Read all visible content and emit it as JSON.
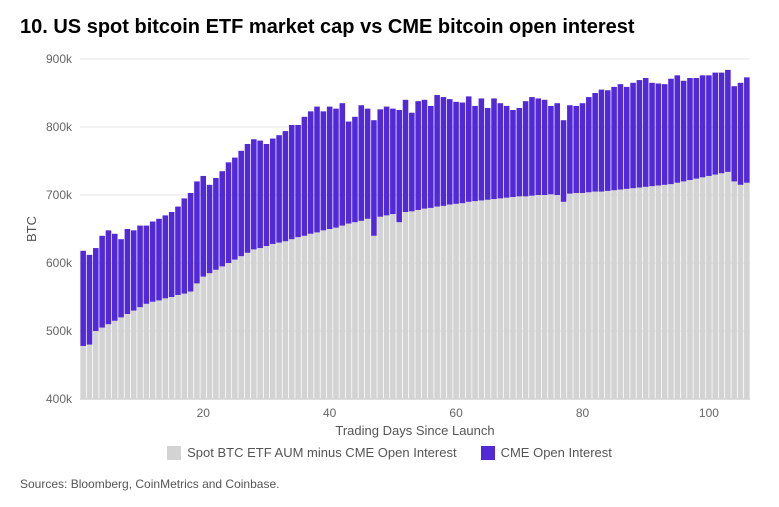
{
  "title": "10. US spot bitcoin ETF market cap vs CME bitcoin open interest",
  "source": "Sources: Bloomberg, CoinMetrics and Coinbase.",
  "chart": {
    "type": "stacked-bar",
    "ylabel": "BTC",
    "xlabel": "Trading Days Since Launch",
    "ylim": [
      400,
      900
    ],
    "ytick_step": 100,
    "ytick_suffix": "k",
    "xticks": [
      20,
      40,
      60,
      80,
      100
    ],
    "background_color": "#ffffff",
    "grid_color": "#e4e4e4",
    "bar_gap_ratio": 0.12,
    "axis_font_size": 13,
    "tick_font_size": 12,
    "title_font_size": 20,
    "series": [
      {
        "name": "Spot BTC ETF AUM minus CME Open Interest",
        "key": "spot",
        "color": "#d3d3d3"
      },
      {
        "name": "CME Open Interest",
        "key": "cme",
        "color": "#5229d6"
      }
    ],
    "data": [
      {
        "x": 1,
        "spot": 478,
        "cme": 140
      },
      {
        "x": 2,
        "spot": 480,
        "cme": 132
      },
      {
        "x": 3,
        "spot": 500,
        "cme": 122
      },
      {
        "x": 4,
        "spot": 505,
        "cme": 135
      },
      {
        "x": 5,
        "spot": 510,
        "cme": 138
      },
      {
        "x": 6,
        "spot": 515,
        "cme": 128
      },
      {
        "x": 7,
        "spot": 520,
        "cme": 115
      },
      {
        "x": 8,
        "spot": 525,
        "cme": 125
      },
      {
        "x": 9,
        "spot": 530,
        "cme": 118
      },
      {
        "x": 10,
        "spot": 535,
        "cme": 120
      },
      {
        "x": 11,
        "spot": 540,
        "cme": 115
      },
      {
        "x": 12,
        "spot": 543,
        "cme": 118
      },
      {
        "x": 13,
        "spot": 545,
        "cme": 120
      },
      {
        "x": 14,
        "spot": 548,
        "cme": 122
      },
      {
        "x": 15,
        "spot": 550,
        "cme": 125
      },
      {
        "x": 16,
        "spot": 553,
        "cme": 130
      },
      {
        "x": 17,
        "spot": 555,
        "cme": 140
      },
      {
        "x": 18,
        "spot": 558,
        "cme": 145
      },
      {
        "x": 19,
        "spot": 570,
        "cme": 150
      },
      {
        "x": 20,
        "spot": 580,
        "cme": 148
      },
      {
        "x": 21,
        "spot": 585,
        "cme": 130
      },
      {
        "x": 22,
        "spot": 590,
        "cme": 135
      },
      {
        "x": 23,
        "spot": 595,
        "cme": 140
      },
      {
        "x": 24,
        "spot": 600,
        "cme": 148
      },
      {
        "x": 25,
        "spot": 605,
        "cme": 150
      },
      {
        "x": 26,
        "spot": 610,
        "cme": 155
      },
      {
        "x": 27,
        "spot": 615,
        "cme": 160
      },
      {
        "x": 28,
        "spot": 620,
        "cme": 162
      },
      {
        "x": 29,
        "spot": 622,
        "cme": 158
      },
      {
        "x": 30,
        "spot": 625,
        "cme": 150
      },
      {
        "x": 31,
        "spot": 628,
        "cme": 155
      },
      {
        "x": 32,
        "spot": 630,
        "cme": 158
      },
      {
        "x": 33,
        "spot": 632,
        "cme": 162
      },
      {
        "x": 34,
        "spot": 635,
        "cme": 168
      },
      {
        "x": 35,
        "spot": 638,
        "cme": 165
      },
      {
        "x": 36,
        "spot": 640,
        "cme": 175
      },
      {
        "x": 37,
        "spot": 643,
        "cme": 180
      },
      {
        "x": 38,
        "spot": 645,
        "cme": 185
      },
      {
        "x": 39,
        "spot": 648,
        "cme": 175
      },
      {
        "x": 40,
        "spot": 650,
        "cme": 180
      },
      {
        "x": 41,
        "spot": 652,
        "cme": 175
      },
      {
        "x": 42,
        "spot": 655,
        "cme": 180
      },
      {
        "x": 43,
        "spot": 658,
        "cme": 150
      },
      {
        "x": 44,
        "spot": 660,
        "cme": 155
      },
      {
        "x": 45,
        "spot": 662,
        "cme": 170
      },
      {
        "x": 46,
        "spot": 665,
        "cme": 162
      },
      {
        "x": 47,
        "spot": 640,
        "cme": 170
      },
      {
        "x": 48,
        "spot": 668,
        "cme": 158
      },
      {
        "x": 49,
        "spot": 670,
        "cme": 160
      },
      {
        "x": 50,
        "spot": 672,
        "cme": 155
      },
      {
        "x": 51,
        "spot": 660,
        "cme": 165
      },
      {
        "x": 52,
        "spot": 675,
        "cme": 165
      },
      {
        "x": 53,
        "spot": 676,
        "cme": 145
      },
      {
        "x": 54,
        "spot": 678,
        "cme": 160
      },
      {
        "x": 55,
        "spot": 680,
        "cme": 160
      },
      {
        "x": 56,
        "spot": 681,
        "cme": 150
      },
      {
        "x": 57,
        "spot": 683,
        "cme": 164
      },
      {
        "x": 58,
        "spot": 684,
        "cme": 160
      },
      {
        "x": 59,
        "spot": 686,
        "cme": 155
      },
      {
        "x": 60,
        "spot": 687,
        "cme": 150
      },
      {
        "x": 61,
        "spot": 688,
        "cme": 148
      },
      {
        "x": 62,
        "spot": 690,
        "cme": 155
      },
      {
        "x": 63,
        "spot": 691,
        "cme": 140
      },
      {
        "x": 64,
        "spot": 692,
        "cme": 150
      },
      {
        "x": 65,
        "spot": 693,
        "cme": 135
      },
      {
        "x": 66,
        "spot": 694,
        "cme": 148
      },
      {
        "x": 67,
        "spot": 695,
        "cme": 140
      },
      {
        "x": 68,
        "spot": 696,
        "cme": 135
      },
      {
        "x": 69,
        "spot": 697,
        "cme": 128
      },
      {
        "x": 70,
        "spot": 698,
        "cme": 130
      },
      {
        "x": 71,
        "spot": 698,
        "cme": 140
      },
      {
        "x": 72,
        "spot": 699,
        "cme": 145
      },
      {
        "x": 73,
        "spot": 700,
        "cme": 142
      },
      {
        "x": 74,
        "spot": 700,
        "cme": 140
      },
      {
        "x": 75,
        "spot": 701,
        "cme": 130
      },
      {
        "x": 76,
        "spot": 700,
        "cme": 135
      },
      {
        "x": 77,
        "spot": 690,
        "cme": 120
      },
      {
        "x": 78,
        "spot": 702,
        "cme": 130
      },
      {
        "x": 79,
        "spot": 703,
        "cme": 128
      },
      {
        "x": 80,
        "spot": 703,
        "cme": 132
      },
      {
        "x": 81,
        "spot": 704,
        "cme": 140
      },
      {
        "x": 82,
        "spot": 705,
        "cme": 145
      },
      {
        "x": 83,
        "spot": 705,
        "cme": 150
      },
      {
        "x": 84,
        "spot": 706,
        "cme": 148
      },
      {
        "x": 85,
        "spot": 707,
        "cme": 152
      },
      {
        "x": 86,
        "spot": 708,
        "cme": 155
      },
      {
        "x": 87,
        "spot": 709,
        "cme": 150
      },
      {
        "x": 88,
        "spot": 710,
        "cme": 155
      },
      {
        "x": 89,
        "spot": 711,
        "cme": 158
      },
      {
        "x": 90,
        "spot": 712,
        "cme": 160
      },
      {
        "x": 91,
        "spot": 713,
        "cme": 152
      },
      {
        "x": 92,
        "spot": 714,
        "cme": 150
      },
      {
        "x": 93,
        "spot": 715,
        "cme": 148
      },
      {
        "x": 94,
        "spot": 716,
        "cme": 155
      },
      {
        "x": 95,
        "spot": 718,
        "cme": 158
      },
      {
        "x": 96,
        "spot": 720,
        "cme": 148
      },
      {
        "x": 97,
        "spot": 722,
        "cme": 150
      },
      {
        "x": 98,
        "spot": 724,
        "cme": 148
      },
      {
        "x": 99,
        "spot": 726,
        "cme": 150
      },
      {
        "x": 100,
        "spot": 728,
        "cme": 148
      },
      {
        "x": 101,
        "spot": 730,
        "cme": 150
      },
      {
        "x": 102,
        "spot": 732,
        "cme": 148
      },
      {
        "x": 103,
        "spot": 734,
        "cme": 150
      },
      {
        "x": 104,
        "spot": 720,
        "cme": 140
      },
      {
        "x": 105,
        "spot": 715,
        "cme": 150
      },
      {
        "x": 106,
        "spot": 718,
        "cme": 155
      }
    ]
  }
}
